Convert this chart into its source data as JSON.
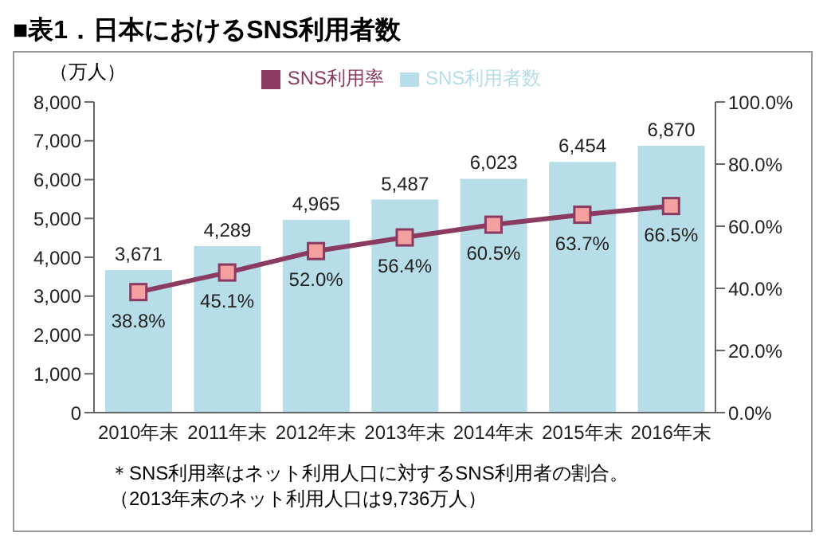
{
  "chart_data": {
    "type": "bar",
    "title": "■表1．日本におけるSNS利用者数",
    "ylabel": "（万人）",
    "categories": [
      "2010年末",
      "2011年末",
      "2012年末",
      "2013年末",
      "2014年末",
      "2015年末",
      "2016年末"
    ],
    "series": [
      {
        "name": "SNS利用者数",
        "color": "#b7dde8",
        "values": [
          3671,
          4289,
          4965,
          5487,
          6023,
          6454,
          6870
        ],
        "value_labels": [
          "3,671",
          "4,289",
          "4,965",
          "5,487",
          "6,023",
          "6,454",
          "6,870"
        ]
      },
      {
        "name": "SNS利用率",
        "type": "line",
        "axis": "y2",
        "color": "#8b3a62",
        "values": [
          38.8,
          45.1,
          52.0,
          56.4,
          60.5,
          63.7,
          66.5
        ],
        "value_labels": [
          "38.8%",
          "45.1%",
          "52.0%",
          "56.4%",
          "60.5%",
          "63.7%",
          "66.5%"
        ]
      }
    ],
    "ylim": [
      0,
      8000
    ],
    "yticks": [
      0,
      {
        "value": 1000,
        "label": "1,000"
      },
      {
        "value": 2000,
        "label": "2,000"
      },
      {
        "value": 3000,
        "label": "3,000"
      },
      {
        "value": 4000,
        "label": "4,000"
      },
      {
        "value": 5000,
        "label": "5,000"
      },
      {
        "value": 6000,
        "label": "6,000"
      },
      {
        "value": 7000,
        "label": "7,000"
      },
      {
        "value": 8000,
        "label": "8,000"
      }
    ],
    "y2lim": [
      0,
      100
    ],
    "y2ticks": [
      {
        "value": 0,
        "label": "0.0%"
      },
      {
        "value": 20,
        "label": "20.0%"
      },
      {
        "value": 40,
        "label": "40.0%"
      },
      {
        "value": 60,
        "label": "60.0%"
      },
      {
        "value": 80,
        "label": "80.0%"
      },
      {
        "value": 100,
        "label": "100.0%"
      }
    ],
    "legend": "top",
    "marker": "square",
    "line_style": "solid",
    "annotations": [
      "＊SNS利用率はネット利用人口に対するSNS利用者の割合。",
      "（2013年末のネット利用人口は9,736万人）"
    ]
  }
}
